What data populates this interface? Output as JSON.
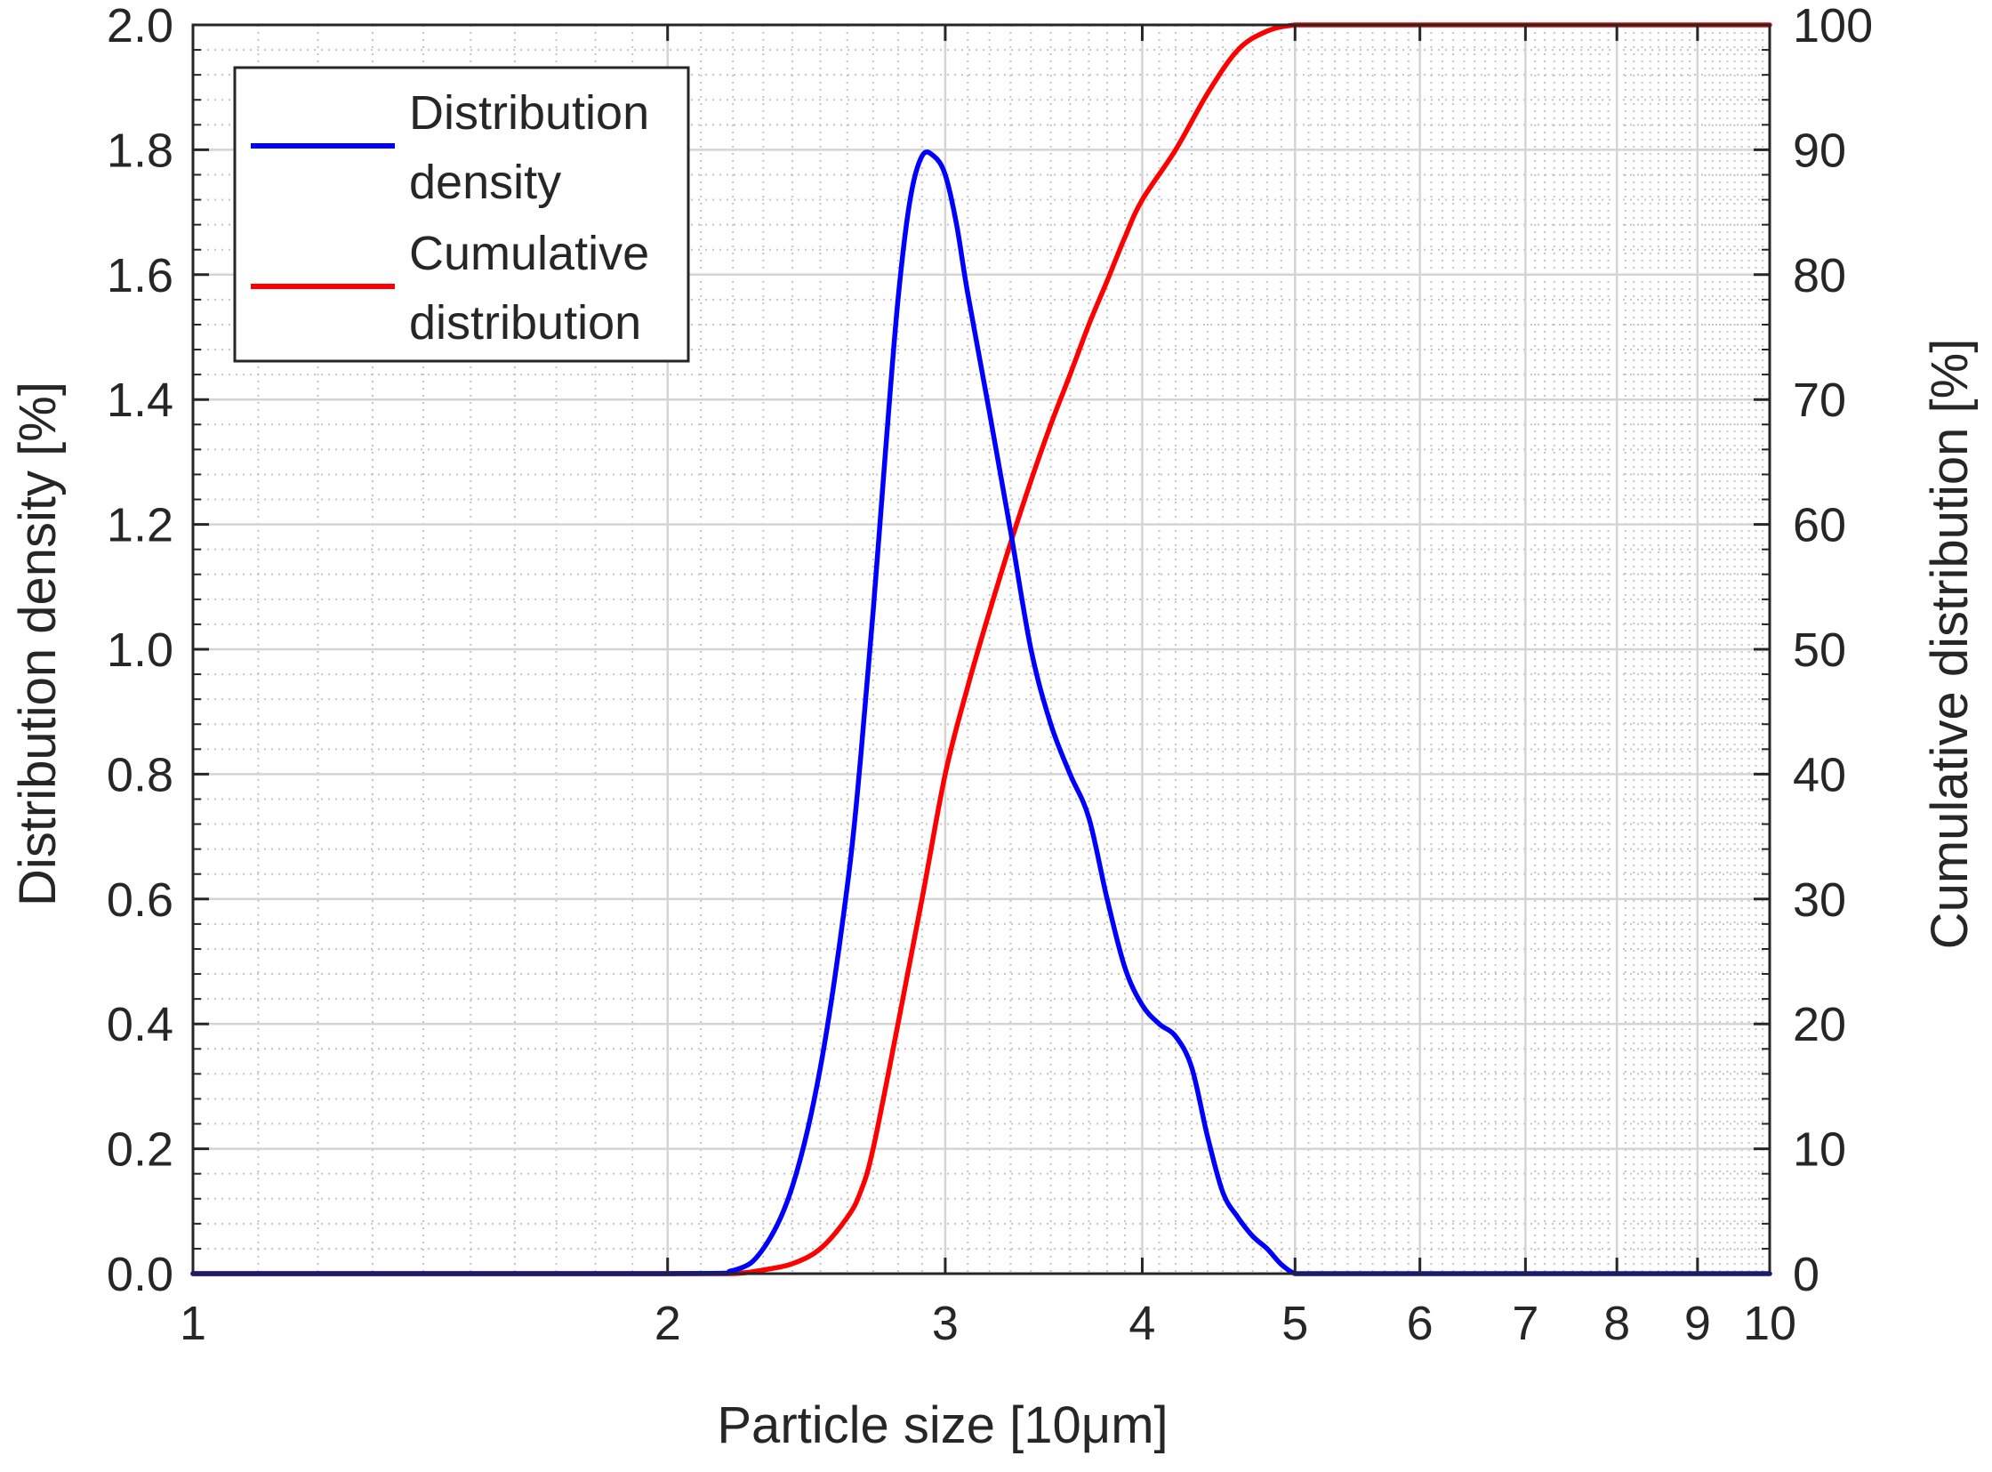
{
  "chart_data": {
    "type": "line",
    "title": "",
    "xlabel": "Particle size [10μm]",
    "ylabel_left": "Distribution density [%]",
    "ylabel_right": "Cumulative distribution [%]",
    "xscale": "log",
    "xlim": [
      1,
      10
    ],
    "ylim_left": [
      0,
      2
    ],
    "ylim_right": [
      0,
      100
    ],
    "grid": true,
    "legend_position": "top-left",
    "x_ticks": [
      1,
      2,
      3,
      4,
      5,
      6,
      7,
      8,
      9,
      10
    ],
    "x_tick_labels": [
      "1",
      "2",
      "3",
      "4",
      "5",
      "6",
      "7",
      "8",
      "9",
      "10"
    ],
    "y_left_ticks": [
      0,
      0.2,
      0.4,
      0.6,
      0.8,
      1.0,
      1.2,
      1.4,
      1.6,
      1.8,
      2.0
    ],
    "y_left_tick_labels": [
      "0.0",
      "0.2",
      "0.4",
      "0.6",
      "0.8",
      "1.0",
      "1.2",
      "1.4",
      "1.6",
      "1.8",
      "2.0"
    ],
    "y_right_ticks": [
      0,
      10,
      20,
      30,
      40,
      50,
      60,
      70,
      80,
      90,
      100
    ],
    "y_right_tick_labels": [
      "0",
      "10",
      "20",
      "30",
      "40",
      "50",
      "60",
      "70",
      "80",
      "90",
      "100"
    ],
    "series": [
      {
        "name": "Distribution density",
        "legend_lines": [
          "Distribution",
          "density"
        ],
        "axis": "left",
        "color": "#0000ff",
        "x": [
          1.0,
          2.0,
          2.2,
          2.3,
          2.4,
          2.5,
          2.6,
          2.65,
          2.7,
          2.75,
          2.8,
          2.85,
          2.9,
          2.95,
          3.0,
          3.05,
          3.1,
          3.2,
          3.3,
          3.4,
          3.5,
          3.6,
          3.7,
          3.8,
          3.9,
          4.0,
          4.1,
          4.2,
          4.3,
          4.4,
          4.5,
          4.6,
          4.7,
          4.8,
          4.9,
          5.0,
          5.1,
          5.2,
          6.0,
          8.0,
          10.0
        ],
        "values": [
          0.0,
          0.0,
          0.005,
          0.04,
          0.14,
          0.33,
          0.62,
          0.82,
          1.06,
          1.32,
          1.56,
          1.72,
          1.79,
          1.79,
          1.76,
          1.68,
          1.57,
          1.38,
          1.19,
          1.0,
          0.88,
          0.8,
          0.73,
          0.6,
          0.49,
          0.43,
          0.4,
          0.38,
          0.33,
          0.22,
          0.13,
          0.09,
          0.06,
          0.04,
          0.015,
          0.0,
          0.0,
          0.0,
          0.0,
          0.0,
          0.0
        ]
      },
      {
        "name": "Cumulative distribution",
        "legend_lines": [
          "Cumulative",
          "distribution"
        ],
        "axis": "right",
        "color": "#ff0000",
        "x": [
          1.0,
          2.0,
          2.2,
          2.3,
          2.4,
          2.5,
          2.6,
          2.65,
          2.7,
          2.8,
          2.9,
          3.0,
          3.1,
          3.2,
          3.3,
          3.4,
          3.5,
          3.6,
          3.7,
          3.8,
          3.9,
          4.0,
          4.2,
          4.4,
          4.6,
          4.8,
          5.0,
          5.2,
          6.0,
          8.0,
          10.0
        ],
        "values": [
          0.0,
          0.0,
          0.0,
          0.3,
          0.8,
          2.0,
          4.5,
          6.5,
          10.0,
          20.0,
          30.0,
          40.0,
          47.0,
          53.0,
          58.5,
          63.5,
          68.0,
          72.0,
          76.0,
          79.5,
          83.0,
          86.0,
          90.0,
          94.5,
          98.0,
          99.5,
          100.0,
          100.0,
          100.0,
          100.0,
          100.0
        ]
      }
    ]
  }
}
